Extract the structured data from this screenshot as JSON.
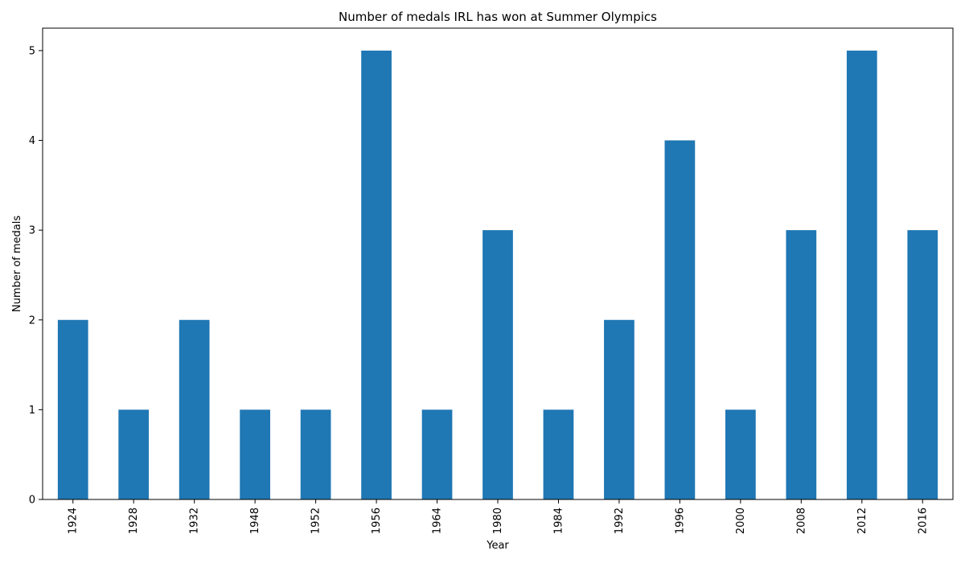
{
  "chart_data": {
    "type": "bar",
    "title": "Number of medals IRL has won at Summer Olympics",
    "xlabel": "Year",
    "ylabel": "Number of medals",
    "categories": [
      "1924",
      "1928",
      "1932",
      "1948",
      "1952",
      "1956",
      "1964",
      "1980",
      "1984",
      "1992",
      "1996",
      "2000",
      "2008",
      "2012",
      "2016"
    ],
    "values": [
      2,
      1,
      2,
      1,
      1,
      5,
      1,
      3,
      1,
      2,
      4,
      1,
      3,
      5,
      3
    ],
    "ylim": [
      0,
      5.25
    ],
    "yticks": [
      0,
      1,
      2,
      3,
      4,
      5
    ],
    "grid": false,
    "legend": "none",
    "bar_color": "#1f77b4",
    "axis_color": "#000000"
  }
}
